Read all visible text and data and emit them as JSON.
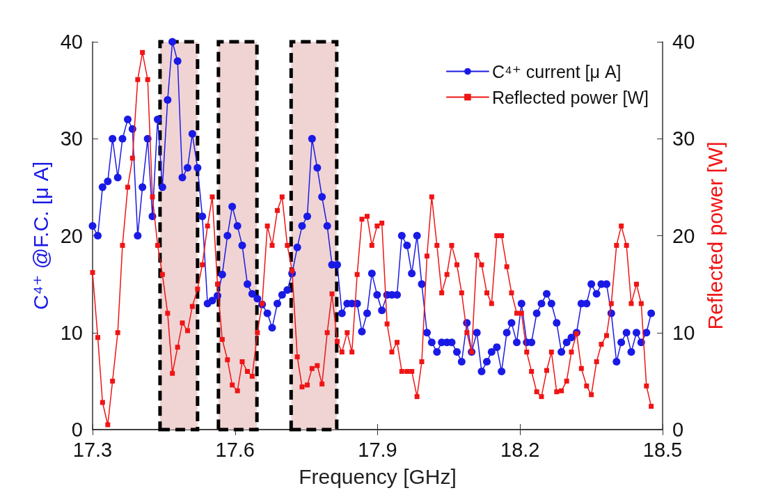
{
  "chart_data": {
    "type": "line",
    "xlabel": "Frequency [GHz]",
    "ylabel": "C⁴⁺ @F.C. [μ A]",
    "y2label": "Reflected power [W]",
    "x": [
      17.3,
      17.311,
      17.321,
      17.332,
      17.342,
      17.353,
      17.363,
      17.374,
      17.384,
      17.395,
      17.405,
      17.416,
      17.426,
      17.437,
      17.447,
      17.458,
      17.468,
      17.479,
      17.489,
      17.5,
      17.51,
      17.521,
      17.531,
      17.542,
      17.552,
      17.563,
      17.573,
      17.584,
      17.594,
      17.605,
      17.615,
      17.626,
      17.636,
      17.647,
      17.657,
      17.668,
      17.678,
      17.689,
      17.699,
      17.71,
      17.72,
      17.731,
      17.741,
      17.752,
      17.762,
      17.773,
      17.783,
      17.794,
      17.804,
      17.815,
      17.825,
      17.836,
      17.846,
      17.857,
      17.867,
      17.878,
      17.888,
      17.899,
      17.909,
      17.92,
      17.93,
      17.941,
      17.951,
      17.962,
      17.972,
      17.983,
      17.993,
      18.004,
      18.014,
      18.025,
      18.035,
      18.046,
      18.056,
      18.067,
      18.077,
      18.088,
      18.098,
      18.109,
      18.119,
      18.13,
      18.14,
      18.151,
      18.161,
      18.172,
      18.182,
      18.193,
      18.203,
      18.214,
      18.224,
      18.235,
      18.245,
      18.256,
      18.266,
      18.277,
      18.287,
      18.298,
      18.308,
      18.319,
      18.329,
      18.34,
      18.35,
      18.361,
      18.371,
      18.382,
      18.392,
      18.403,
      18.413,
      18.424,
      18.434,
      18.445,
      18.455,
      18.466,
      18.476
    ],
    "series": [
      {
        "name": "C⁴⁺ current [μ A]",
        "color": "#1a1ae6",
        "marker": "circle",
        "values": [
          21,
          20,
          25,
          25.6,
          30,
          26,
          30,
          32,
          31,
          20,
          25,
          30,
          22,
          32,
          25,
          34,
          40,
          38,
          26,
          27,
          30.5,
          27,
          22,
          13,
          13.3,
          13.8,
          16,
          20,
          23,
          21,
          19,
          15,
          14,
          13.5,
          12.9,
          12,
          10.5,
          13,
          13.9,
          14.4,
          16.1,
          18.8,
          21,
          22,
          30,
          27,
          24,
          21,
          17,
          17,
          12,
          13,
          13,
          13,
          10.1,
          12,
          16.1,
          13.9,
          12.3,
          13.9,
          13.9,
          13.9,
          20,
          19,
          16.1,
          20,
          15,
          10,
          9,
          8,
          9,
          9,
          9,
          8,
          7,
          11,
          8,
          10,
          6,
          7,
          8,
          8.5,
          6,
          10,
          11,
          9,
          13,
          9,
          9,
          12,
          13,
          14,
          13,
          11,
          8,
          9,
          9.5,
          10,
          13,
          13,
          15,
          14,
          15,
          15,
          12,
          7,
          9,
          10,
          8,
          10,
          9,
          10,
          12
        ]
      },
      {
        "name": "Reflected power [W]",
        "color": "#f01414",
        "marker": "square",
        "axis": "y2",
        "values": [
          16.2,
          9.5,
          2.8,
          0.5,
          5,
          10,
          19,
          25,
          28,
          36.1,
          38.9,
          36.1,
          24,
          19,
          16,
          12,
          5.8,
          8.5,
          11,
          10.2,
          12.7,
          14.5,
          17,
          21,
          24,
          15,
          9.3,
          7.2,
          4.6,
          4,
          7,
          6,
          5.5,
          10,
          13,
          21,
          19,
          22.6,
          24,
          19,
          16.4,
          7.5,
          4.4,
          4.6,
          6.3,
          6.6,
          4.7,
          10,
          14,
          9.1,
          8,
          10,
          8,
          16,
          21.7,
          22,
          19,
          21,
          21.3,
          10.9,
          8,
          9,
          6,
          6,
          6,
          3.4,
          7,
          17.9,
          24,
          19,
          14.1,
          16,
          19,
          17,
          14.1,
          10,
          8,
          18,
          17,
          14.1,
          13,
          20,
          20,
          16.8,
          14.1,
          12,
          12,
          8,
          6,
          3.9,
          3.4,
          6.1,
          8,
          3.9,
          4,
          5,
          8,
          9.9,
          6.3,
          4.5,
          3.6,
          7,
          8.8,
          9.7,
          13,
          19,
          21,
          19,
          13,
          15,
          13,
          4.5,
          2.4
        ]
      }
    ],
    "xlim": [
      17.3,
      18.5
    ],
    "xticks": [
      17.3,
      17.6,
      17.9,
      18.2,
      18.5
    ],
    "ylim": [
      0,
      40
    ],
    "yticks": [
      0,
      10,
      20,
      30,
      40
    ],
    "y2lim": [
      0,
      40
    ],
    "y2ticks": [
      0,
      10,
      20,
      30,
      40
    ],
    "bands": [
      {
        "axis": "x",
        "from": 17.442,
        "to": 17.521,
        "color": "#f0d4d4"
      },
      {
        "axis": "x",
        "from": 17.565,
        "to": 17.646,
        "color": "#f0d4d4"
      },
      {
        "axis": "x",
        "from": 17.718,
        "to": 17.814,
        "color": "#f0d4d4"
      }
    ],
    "legend": "top right",
    "grid": false
  }
}
